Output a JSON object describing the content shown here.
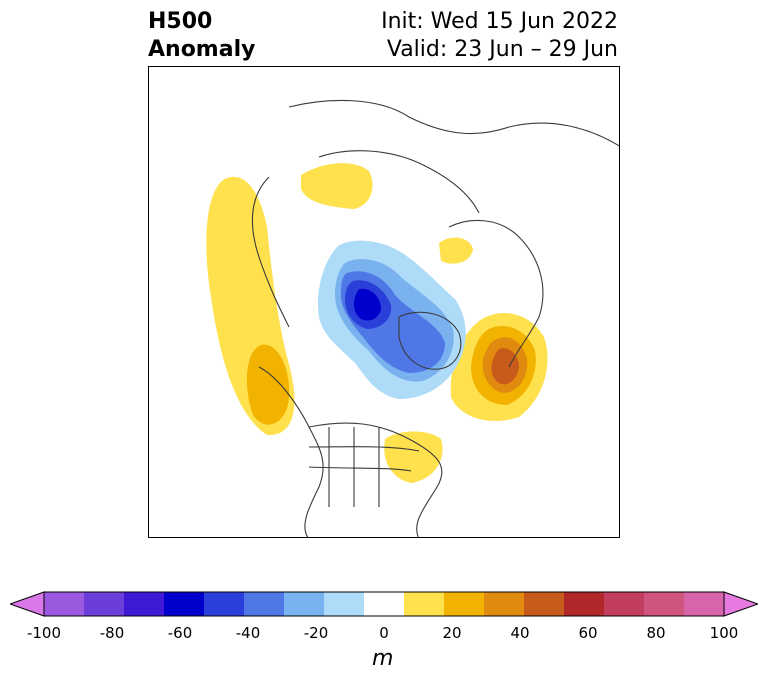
{
  "title": {
    "left_line1": "H500",
    "left_line2": "Anomaly",
    "right_line1": "Init: Wed 15 Jun 2022",
    "right_line2": "Valid: 23 Jun – 29 Jun"
  },
  "colorbar": {
    "unit": "m",
    "ticks": [
      "-100",
      "-80",
      "-60",
      "-40",
      "-20",
      "0",
      "20",
      "40",
      "60",
      "80",
      "100"
    ],
    "min_color": "#d977e8",
    "max_color": "#e67ae0",
    "colors": [
      "#9b59e0",
      "#6b3ed9",
      "#3f1ad6",
      "#0000cc",
      "#2a3fd9",
      "#4f78e6",
      "#7ab2f0",
      "#aedcf8",
      "#ffffff",
      "#ffe04d",
      "#f2b300",
      "#e08a10",
      "#c85a1a",
      "#b0282a",
      "#c23e5e",
      "#d0557e",
      "#d665aa"
    ]
  },
  "map": {
    "colors": {
      "neg_light": "#aedcf8",
      "neg_mid": "#7ab2f0",
      "neg_strong": "#4f78e6",
      "neg_deep": "#2a3fd9",
      "neg_core": "#0000cc",
      "pos_light": "#ffe04d",
      "pos_mid": "#f2b300",
      "pos_strong": "#e08a10",
      "pos_core": "#c85a1a",
      "coast": "#3a3a3a"
    }
  }
}
